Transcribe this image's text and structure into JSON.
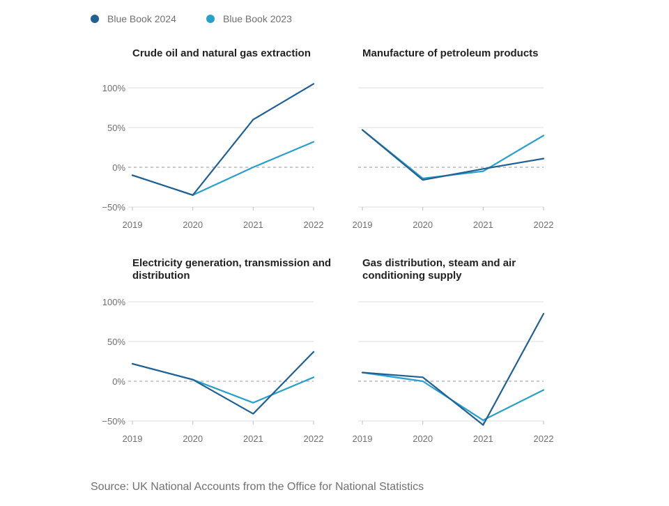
{
  "legend": [
    {
      "name": "Blue Book 2024",
      "color": "#206095"
    },
    {
      "name": "Blue Book 2023",
      "color": "#27a0cc"
    }
  ],
  "chart_data": [
    {
      "type": "line",
      "title": "Crude oil and natural gas extraction",
      "title_lines": [
        "Crude oil and natural gas extraction"
      ],
      "x": [
        "2019",
        "2020",
        "2021",
        "2022"
      ],
      "ylim": [
        -50,
        100
      ],
      "yticks": [
        100,
        50,
        0,
        -50
      ],
      "ytick_labels": [
        "100%",
        "50%",
        "0%",
        "−50%"
      ],
      "show_y_labels": true,
      "series": [
        {
          "name": "Blue Book 2024",
          "color": "#206095",
          "values": [
            -10,
            -35,
            60,
            105
          ]
        },
        {
          "name": "Blue Book 2023",
          "color": "#27a0cc",
          "values": [
            -10,
            -35,
            0,
            32
          ]
        }
      ]
    },
    {
      "type": "line",
      "title": "Manufacture of petroleum products",
      "title_lines": [
        "Manufacture of petroleum products"
      ],
      "x": [
        "2019",
        "2020",
        "2021",
        "2022"
      ],
      "ylim": [
        -50,
        100
      ],
      "yticks": [
        100,
        50,
        0,
        -50
      ],
      "ytick_labels": [
        "100%",
        "50%",
        "0%",
        "−50%"
      ],
      "show_y_labels": false,
      "series": [
        {
          "name": "Blue Book 2024",
          "color": "#206095",
          "values": [
            47,
            -16,
            -2,
            11
          ]
        },
        {
          "name": "Blue Book 2023",
          "color": "#27a0cc",
          "values": [
            47,
            -14,
            -5,
            40
          ]
        }
      ]
    },
    {
      "type": "line",
      "title": "Electricity generation, transmission and distribution",
      "title_lines": [
        "Electricity generation, transmission and",
        "distribution"
      ],
      "x": [
        "2019",
        "2020",
        "2021",
        "2022"
      ],
      "ylim": [
        -50,
        100
      ],
      "yticks": [
        100,
        50,
        0,
        -50
      ],
      "ytick_labels": [
        "100%",
        "50%",
        "0%",
        "−50%"
      ],
      "show_y_labels": true,
      "series": [
        {
          "name": "Blue Book 2024",
          "color": "#206095",
          "values": [
            22,
            2,
            -41,
            37
          ]
        },
        {
          "name": "Blue Book 2023",
          "color": "#27a0cc",
          "values": [
            22,
            2,
            -27,
            5
          ]
        }
      ]
    },
    {
      "type": "line",
      "title": "Gas distribution, steam and air conditioning supply",
      "title_lines": [
        "Gas distribution, steam and air",
        "conditioning supply"
      ],
      "x": [
        "2019",
        "2020",
        "2021",
        "2022"
      ],
      "ylim": [
        -50,
        100
      ],
      "yticks": [
        100,
        50,
        0,
        -50
      ],
      "ytick_labels": [
        "100%",
        "50%",
        "0%",
        "−50%"
      ],
      "show_y_labels": false,
      "series": [
        {
          "name": "Blue Book 2024",
          "color": "#206095",
          "values": [
            11,
            5,
            -55,
            85
          ]
        },
        {
          "name": "Blue Book 2023",
          "color": "#27a0cc",
          "values": [
            11,
            0,
            -49,
            -11
          ]
        }
      ]
    }
  ],
  "source": "Source: UK National Accounts from the Office for National Statistics"
}
